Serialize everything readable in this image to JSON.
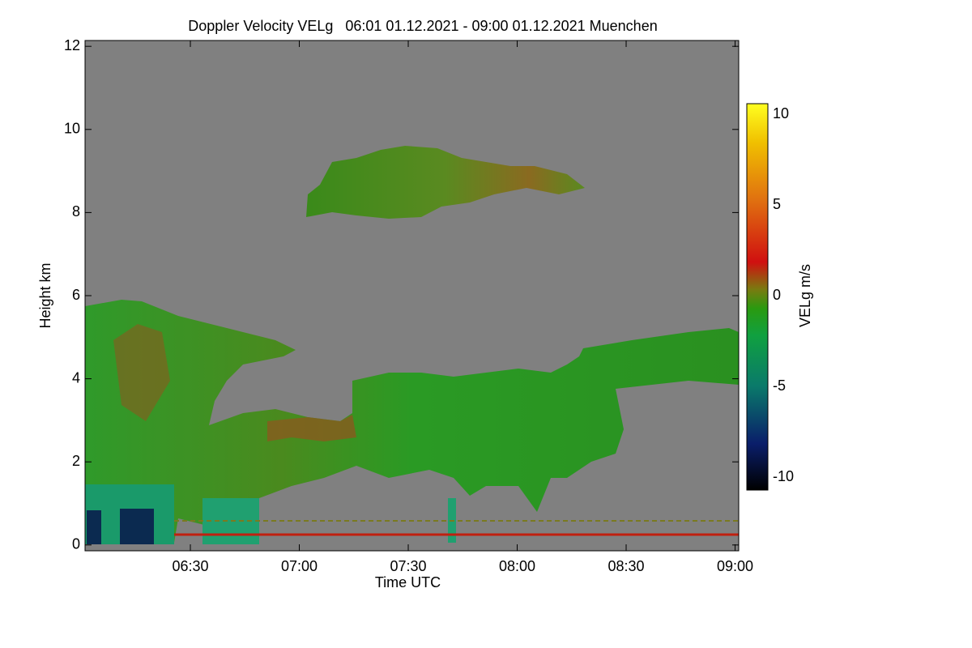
{
  "chart_data": {
    "type": "heatmap",
    "title": "Doppler Velocity VELg   06:01 01.12.2021 - 09:00 01.12.2021 Muenchen",
    "xlabel": "Time UTC",
    "ylabel": "Height km",
    "xlim": [
      361,
      541
    ],
    "xticks": [
      {
        "value": 390,
        "label": "06:30"
      },
      {
        "value": 420,
        "label": "07:00"
      },
      {
        "value": 450,
        "label": "07:30"
      },
      {
        "value": 480,
        "label": "08:00"
      },
      {
        "value": 510,
        "label": "08:30"
      },
      {
        "value": 540,
        "label": "09:00"
      }
    ],
    "ylim": [
      -0.14,
      12.14
    ],
    "yticks": [
      0,
      2,
      4,
      6,
      8,
      10,
      12
    ],
    "colorbar": {
      "label": "VELg m/s",
      "lim": [
        -10.7,
        10.6
      ],
      "ticks": [
        -10,
        -5,
        0,
        5,
        10
      ]
    }
  }
}
